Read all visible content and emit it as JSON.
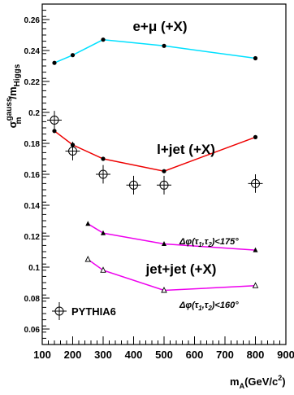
{
  "chart_data": {
    "type": "line",
    "ylabel": {
      "base": "σ",
      "sup": "gauss",
      "sub": "m",
      "rest": "/m",
      "rest_sub": "Higgs"
    },
    "xlabel": {
      "base": "m",
      "sub": "A",
      "rest": "(GeV/c",
      "sup": "2",
      "end": ")"
    },
    "xlim": [
      100,
      900
    ],
    "ylim": [
      0.05,
      0.27
    ],
    "x_ticks": [
      "100",
      "200",
      "300",
      "400",
      "500",
      "600",
      "700",
      "800",
      "900"
    ],
    "y_ticks": [
      "0.06",
      "0.08",
      "0.1",
      "0.12",
      "0.14",
      "0.16",
      "0.18",
      "0.2",
      "0.22",
      "0.24",
      "0.26"
    ],
    "x_tick_values": [
      100,
      200,
      300,
      400,
      500,
      600,
      700,
      800,
      900
    ],
    "y_tick_values": [
      0.06,
      0.08,
      0.1,
      0.12,
      0.14,
      0.16,
      0.18,
      0.2,
      0.22,
      0.24,
      0.26
    ],
    "grid": false,
    "series": [
      {
        "key": "emu",
        "color": "#00e0ff",
        "marker": "filled-circle",
        "x": [
          140,
          200,
          300,
          500,
          800
        ],
        "y": [
          0.232,
          0.237,
          0.247,
          0.243,
          0.235
        ]
      },
      {
        "key": "ljet",
        "color": "#ee0000",
        "marker": "filled-circle",
        "x": [
          140,
          200,
          300,
          500,
          800
        ],
        "y": [
          0.188,
          0.179,
          0.17,
          0.162,
          0.184
        ]
      },
      {
        "key": "jj175",
        "color": "#ee00ee",
        "marker": "filled-triangle",
        "x": [
          250,
          300,
          500,
          800
        ],
        "y": [
          0.128,
          0.122,
          0.115,
          0.111
        ]
      },
      {
        "key": "jj160",
        "color": "#ee00ee",
        "marker": "open-triangle",
        "x": [
          250,
          300,
          500,
          800
        ],
        "y": [
          0.105,
          0.098,
          0.085,
          0.088
        ]
      },
      {
        "key": "pythia",
        "color": "#000000",
        "marker": "open-circle-cross",
        "x": [
          140,
          200,
          300,
          400,
          500,
          800
        ],
        "y": [
          0.195,
          0.175,
          0.16,
          0.153,
          0.153,
          0.154
        ],
        "y_err": [
          0.006,
          0.006,
          0.006,
          0.006,
          0.006,
          0.006
        ]
      }
    ],
    "annotations": {
      "emu": "e+μ (+X)",
      "ljet": "l+jet (+X)",
      "jetjet": "jet+jet (+X)",
      "cut175": {
        "pre": "Δφ(τ",
        "sub1": "1",
        "mid": ",τ",
        "sub2": "2",
        "post": ")<175°"
      },
      "cut160": {
        "pre": "Δφ(τ",
        "sub1": "1",
        "mid": ",τ",
        "sub2": "2",
        "post": ")<160°"
      }
    },
    "legend": {
      "entries": [
        "PYTHIA6"
      ],
      "placement": "bottom-left"
    }
  }
}
